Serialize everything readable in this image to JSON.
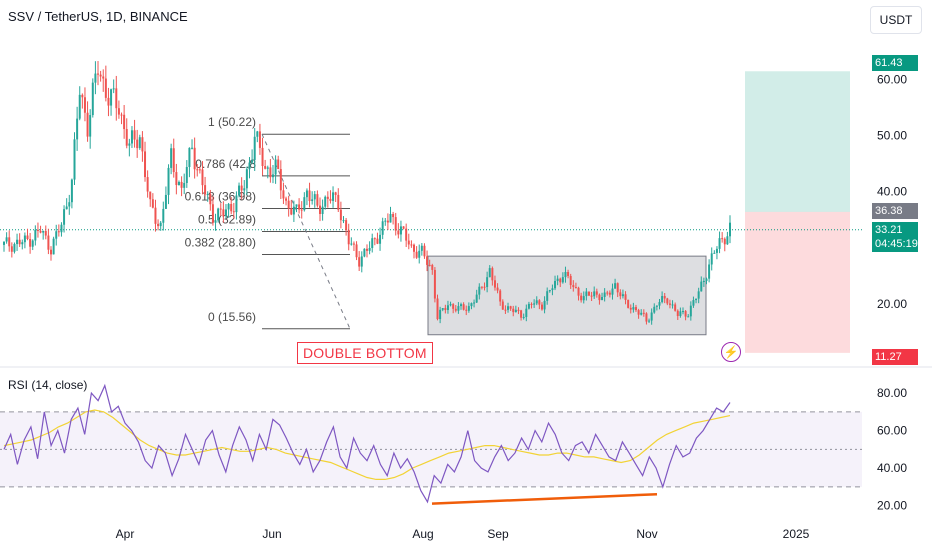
{
  "header": {
    "title": "SSV / TetherUS, 1D, BINANCE",
    "currency": "USDT"
  },
  "rsi": {
    "title": "RSI (14, close)"
  },
  "annotation": {
    "pattern": "DOUBLE BOTTOM"
  },
  "price_tags": {
    "target": "61.43",
    "entry": "36.38",
    "last": "33.21",
    "countdown": "04:45:19",
    "stop": "11.27"
  },
  "colors": {
    "up": "#26a69a",
    "down": "#ef5350",
    "rsi": "#7e57c2",
    "rsi_ma": "#f2d335",
    "divergence": "#f05d0a"
  },
  "chart_data": [
    {
      "type": "candlestick",
      "x_ticks": [
        "Apr",
        "Jun",
        "Aug",
        "Sep",
        "Nov",
        "2025"
      ],
      "y_ticks": [
        20,
        30,
        40,
        50,
        60
      ],
      "y_tick_labels": [
        "20.00",
        "30.00",
        "40.00",
        "50.00",
        "60.00"
      ],
      "ylim": [
        10,
        67
      ],
      "close_path": [
        {
          "t": 0,
          "p": 30.5
        },
        {
          "t": 8,
          "p": 31
        },
        {
          "t": 14,
          "p": 33
        },
        {
          "t": 18,
          "p": 30
        },
        {
          "t": 22,
          "p": 34
        },
        {
          "t": 26,
          "p": 42
        },
        {
          "t": 29,
          "p": 58
        },
        {
          "t": 32,
          "p": 52
        },
        {
          "t": 36,
          "p": 62
        },
        {
          "t": 40,
          "p": 57
        },
        {
          "t": 44,
          "p": 55
        },
        {
          "t": 48,
          "p": 48
        },
        {
          "t": 52,
          "p": 50
        },
        {
          "t": 56,
          "p": 37
        },
        {
          "t": 60,
          "p": 34
        },
        {
          "t": 64,
          "p": 46
        },
        {
          "t": 68,
          "p": 40
        },
        {
          "t": 72,
          "p": 48
        },
        {
          "t": 76,
          "p": 41
        },
        {
          "t": 80,
          "p": 36
        },
        {
          "t": 84,
          "p": 36
        },
        {
          "t": 88,
          "p": 38
        },
        {
          "t": 92,
          "p": 41
        },
        {
          "t": 96,
          "p": 50
        },
        {
          "t": 100,
          "p": 44
        },
        {
          "t": 104,
          "p": 44
        },
        {
          "t": 108,
          "p": 38
        },
        {
          "t": 112,
          "p": 36
        },
        {
          "t": 116,
          "p": 40
        },
        {
          "t": 120,
          "p": 37
        },
        {
          "t": 124,
          "p": 39
        },
        {
          "t": 128,
          "p": 38
        },
        {
          "t": 132,
          "p": 31
        },
        {
          "t": 136,
          "p": 28
        },
        {
          "t": 140,
          "p": 30
        },
        {
          "t": 144,
          "p": 33
        },
        {
          "t": 148,
          "p": 35.5
        },
        {
          "t": 152,
          "p": 33
        },
        {
          "t": 156,
          "p": 30
        },
        {
          "t": 160,
          "p": 29
        },
        {
          "t": 164,
          "p": 26
        },
        {
          "t": 166,
          "p": 17.5
        },
        {
          "t": 170,
          "p": 20
        },
        {
          "t": 174,
          "p": 19
        },
        {
          "t": 178,
          "p": 19.5
        },
        {
          "t": 182,
          "p": 22
        },
        {
          "t": 186,
          "p": 26
        },
        {
          "t": 190,
          "p": 20
        },
        {
          "t": 194,
          "p": 19
        },
        {
          "t": 198,
          "p": 18
        },
        {
          "t": 202,
          "p": 20
        },
        {
          "t": 206,
          "p": 20
        },
        {
          "t": 210,
          "p": 23
        },
        {
          "t": 214,
          "p": 25.5
        },
        {
          "t": 218,
          "p": 23
        },
        {
          "t": 222,
          "p": 21
        },
        {
          "t": 226,
          "p": 22
        },
        {
          "t": 230,
          "p": 21
        },
        {
          "t": 234,
          "p": 23.5
        },
        {
          "t": 238,
          "p": 20
        },
        {
          "t": 242,
          "p": 19
        },
        {
          "t": 246,
          "p": 17
        },
        {
          "t": 250,
          "p": 20
        },
        {
          "t": 254,
          "p": 21
        },
        {
          "t": 258,
          "p": 18
        },
        {
          "t": 262,
          "p": 18.5
        },
        {
          "t": 266,
          "p": 22
        },
        {
          "t": 270,
          "p": 27
        },
        {
          "t": 274,
          "p": 31
        },
        {
          "t": 278,
          "p": 33.2
        }
      ],
      "fibonacci": [
        {
          "level": "1 (50.22)",
          "price": 50.22
        },
        {
          "level": "0.786 (42.8",
          "price": 42.8
        },
        {
          "level": "0.618 (36.98)",
          "price": 36.98
        },
        {
          "level": "0.5 (32.89)",
          "price": 32.89
        },
        {
          "level": "0.382 (28.80)",
          "price": 28.8
        },
        {
          "level": "0 (15.56)",
          "price": 15.56
        }
      ],
      "range_box": {
        "top": 28.5,
        "bottom": 14.5
      },
      "position": {
        "target": 61.43,
        "entry": 36.38,
        "stop": 11.27
      }
    },
    {
      "type": "line",
      "title": "RSI (14, close)",
      "y_ticks": [
        20,
        40,
        60,
        80
      ],
      "y_tick_labels": [
        "20.00",
        "40.00",
        "60.00",
        "80.00"
      ],
      "ylim": [
        15,
        87
      ],
      "bands": [
        30,
        50,
        70
      ],
      "series": [
        {
          "values": [
            50,
            58,
            42,
            55,
            62,
            45,
            70,
            52,
            60,
            48,
            66,
            72,
            58,
            80,
            76,
            84,
            70,
            73,
            64,
            60,
            54,
            44,
            40,
            52,
            48,
            36,
            45,
            58,
            50,
            42,
            55,
            60,
            47,
            38,
            52,
            62,
            55,
            44,
            58,
            50,
            66,
            63,
            56,
            48,
            42,
            50,
            38,
            44,
            54,
            62,
            46,
            40,
            56,
            48,
            44,
            52,
            42,
            36,
            48,
            40,
            45,
            38,
            28,
            22,
            36,
            32,
            42,
            38,
            46,
            60,
            44,
            40,
            38,
            46,
            52,
            44,
            48,
            56,
            50,
            60,
            54,
            64,
            58,
            48,
            44,
            52,
            54,
            48,
            58,
            52,
            46,
            44,
            54,
            48,
            42,
            36,
            46,
            40,
            30,
            42,
            52,
            46,
            48,
            56,
            60,
            66,
            72,
            70,
            75
          ]
        },
        {
          "values": [
            52,
            53,
            54,
            55,
            57,
            59,
            62,
            64,
            67,
            70,
            71,
            70,
            67,
            63,
            59,
            55,
            52,
            50,
            48,
            47,
            47,
            48,
            49,
            50,
            51,
            50,
            49,
            49,
            50,
            51,
            50,
            48,
            47,
            46,
            45,
            44,
            43,
            41,
            39,
            37,
            35,
            34,
            34,
            35,
            37,
            40,
            42,
            44,
            46,
            48,
            49,
            50,
            51,
            52,
            52,
            51,
            50,
            49,
            48,
            47,
            47,
            48,
            48,
            47,
            46,
            46,
            45,
            44,
            43,
            44,
            47,
            51,
            55,
            58,
            60,
            62,
            64,
            65,
            66,
            67,
            68
          ]
        }
      ],
      "divergence_line": {
        "from": 28,
        "to": 33
      }
    }
  ]
}
